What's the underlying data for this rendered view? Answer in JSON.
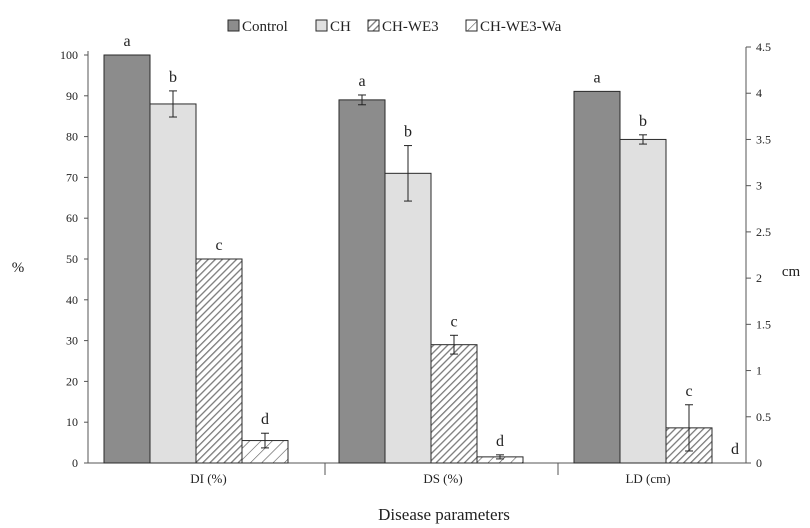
{
  "chart_data": {
    "type": "bar",
    "xlabel": "Disease parameters",
    "ylabel_left": "%",
    "ylabel_right": "cm",
    "categories": [
      "DI (%)",
      "DS (%)",
      "LD (cm)"
    ],
    "left_axis": {
      "min": 0,
      "max": 100,
      "step": 10,
      "ticks": [
        "0",
        "10",
        "20",
        "30",
        "40",
        "50",
        "60",
        "70",
        "80",
        "90",
        "100"
      ]
    },
    "right_axis": {
      "min": 0,
      "max": 4.5,
      "step": 0.5,
      "ticks": [
        "0",
        "0.5",
        "1",
        "1.5",
        "2",
        "2.5",
        "3",
        "3.5",
        "4",
        "4.5"
      ]
    },
    "legend": {
      "placement": "top-center"
    },
    "series": [
      {
        "name": "Control",
        "color": "#8c8c8c",
        "pattern": "solid",
        "values": [
          100,
          89,
          4.02
        ],
        "errors": [
          0,
          1.2,
          0
        ],
        "letters": [
          "a",
          "a",
          "a"
        ]
      },
      {
        "name": "CH",
        "color": "#e0e0e0",
        "pattern": "solid",
        "values": [
          88,
          71,
          3.5
        ],
        "errors": [
          3.2,
          6.8,
          0.05
        ],
        "letters": [
          "b",
          "b",
          "b"
        ]
      },
      {
        "name": "CH-WE3",
        "color": "#8c8c8c",
        "pattern": "dense-hatch",
        "values": [
          50,
          29,
          0.38
        ],
        "errors": [
          0,
          2.3,
          0.25
        ],
        "letters": [
          "c",
          "c",
          "c"
        ]
      },
      {
        "name": "CH-WE3-Wa",
        "color": "#555555",
        "pattern": "sparse-hatch",
        "values": [
          5.5,
          1.5,
          0
        ],
        "errors": [
          1.8,
          0.5,
          0
        ],
        "letters": [
          "d",
          "d",
          "d"
        ]
      }
    ]
  }
}
